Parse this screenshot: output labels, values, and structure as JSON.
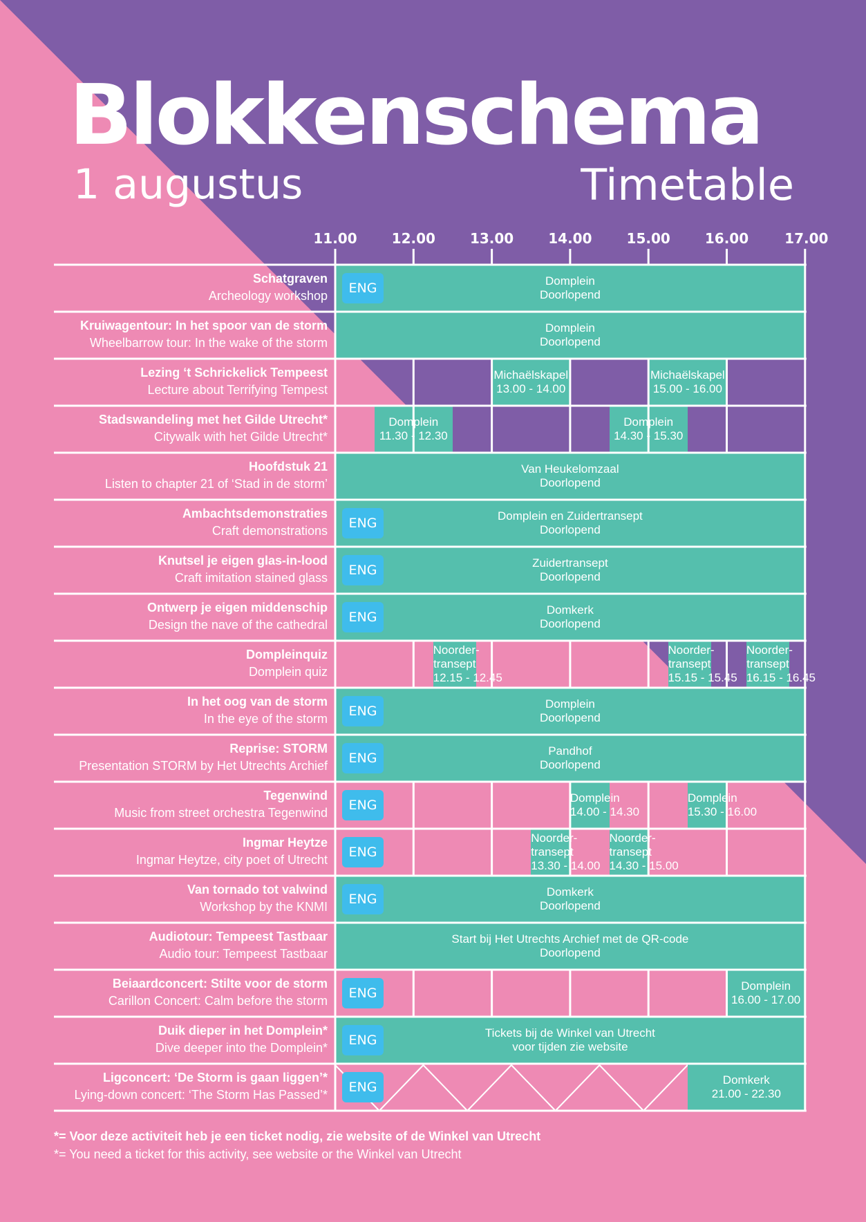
{
  "header": {
    "title": "Blokkenschema",
    "date": "1 augustus",
    "subtitle": "Timetable"
  },
  "colors": {
    "pink": "#ee8ab4",
    "purple": "#7f5da7",
    "teal": "#55bfad",
    "eng": "#3fbcec"
  },
  "times": [
    "11.00",
    "12.00",
    "13.00",
    "14.00",
    "15.00",
    "16.00",
    "17.00"
  ],
  "rows": [
    {
      "name": "Schatgraven",
      "en": "Archeology workshop",
      "eng": true,
      "blocks": [
        {
          "from": 11.0,
          "to": 17.0,
          "lines": [
            "Domplein",
            "Doorlopend"
          ]
        }
      ]
    },
    {
      "name": "Kruiwagentour: In het spoor van de storm",
      "en": "Wheelbarrow tour: In the wake of the storm",
      "eng": false,
      "blocks": [
        {
          "from": 11.0,
          "to": 17.0,
          "lines": [
            "Domplein",
            "Doorlopend"
          ]
        }
      ]
    },
    {
      "name": "Lezing ‘t Schrickelick Tempeest",
      "en": "Lecture about Terrifying Tempest",
      "eng": false,
      "blocks": [
        {
          "from": 13.0,
          "to": 14.0,
          "lines": [
            "Michaëlskapel",
            "13.00 - 14.00"
          ]
        },
        {
          "from": 15.0,
          "to": 16.0,
          "lines": [
            "Michaëlskapel",
            "15.00 - 16.00"
          ]
        }
      ]
    },
    {
      "name": "Stadswandeling met het Gilde Utrecht*",
      "en": "Citywalk with het Gilde Utrecht*",
      "eng": false,
      "blocks": [
        {
          "from": 11.5,
          "to": 12.5,
          "lines": [
            "Domplein",
            "11.30 - 12.30"
          ]
        },
        {
          "from": 14.5,
          "to": 15.5,
          "lines": [
            "Domplein",
            "14.30 - 15.30"
          ]
        }
      ]
    },
    {
      "name": "Hoofdstuk 21",
      "en": "Listen to chapter 21 of ‘Stad in de storm’",
      "eng": false,
      "blocks": [
        {
          "from": 11.0,
          "to": 17.0,
          "lines": [
            "Van Heukelomzaal",
            "Doorlopend"
          ]
        }
      ]
    },
    {
      "name": "Ambachtsdemonstraties",
      "en": "Craft demonstrations",
      "eng": true,
      "blocks": [
        {
          "from": 11.0,
          "to": 17.0,
          "lines": [
            "Domplein en Zuidertransept",
            "Doorlopend"
          ]
        }
      ]
    },
    {
      "name": "Knutsel je eigen glas-in-lood",
      "en": "Craft imitation stained glass",
      "eng": true,
      "blocks": [
        {
          "from": 11.0,
          "to": 17.0,
          "lines": [
            "Zuidertransept",
            "Doorlopend"
          ]
        }
      ]
    },
    {
      "name": "Ontwerp je eigen middenschip",
      "en": "Design the nave of the cathedral",
      "eng": true,
      "blocks": [
        {
          "from": 11.0,
          "to": 17.0,
          "lines": [
            "Domkerk",
            "Doorlopend"
          ]
        }
      ]
    },
    {
      "name": "Dompleinquiz",
      "en": "Domplein quiz",
      "eng": false,
      "blocks": [
        {
          "from": 12.25,
          "to": 12.8,
          "lines": [
            "Noorder-",
            "transept",
            "12.15 - 12.45"
          ]
        },
        {
          "from": 15.25,
          "to": 15.8,
          "lines": [
            "Noorder-",
            "transept",
            "15.15 - 15.45"
          ]
        },
        {
          "from": 16.25,
          "to": 16.8,
          "lines": [
            "Noorder-",
            "transept",
            "16.15 - 16.45"
          ]
        }
      ]
    },
    {
      "name": "In het oog van de storm",
      "en": "In the eye of the storm",
      "eng": true,
      "blocks": [
        {
          "from": 11.0,
          "to": 17.0,
          "lines": [
            "Domplein",
            "Doorlopend"
          ]
        }
      ]
    },
    {
      "name": "Reprise: STORM",
      "en": "Presentation STORM by Het Utrechts Archief",
      "eng": true,
      "blocks": [
        {
          "from": 11.0,
          "to": 17.0,
          "lines": [
            "Pandhof",
            "Doorlopend"
          ]
        }
      ]
    },
    {
      "name": "Tegenwind",
      "en": "Music from street orchestra Tegenwind",
      "eng": true,
      "blocks": [
        {
          "from": 14.0,
          "to": 14.5,
          "lines": [
            "Domplein",
            "14.00 - 14.30"
          ]
        },
        {
          "from": 15.5,
          "to": 16.0,
          "lines": [
            "Domplein",
            "15.30 - 16.00"
          ]
        }
      ]
    },
    {
      "name": "Ingmar Heytze",
      "en": "Ingmar Heytze, city poet of Utrecht",
      "eng": true,
      "blocks": [
        {
          "from": 13.5,
          "to": 14.0,
          "lines": [
            "Noorder-",
            "transept",
            "13.30 - 14.00"
          ]
        },
        {
          "from": 14.5,
          "to": 15.0,
          "lines": [
            "Noorder-",
            "transept",
            "14.30 - 15.00"
          ]
        }
      ]
    },
    {
      "name": "Van tornado tot valwind",
      "en": "Workshop by the KNMI",
      "eng": true,
      "blocks": [
        {
          "from": 11.0,
          "to": 17.0,
          "lines": [
            "Domkerk",
            "Doorlopend"
          ]
        }
      ]
    },
    {
      "name": "Audiotour: Tempeest Tastbaar",
      "en": "Audio tour: Tempeest Tastbaar",
      "eng": false,
      "blocks": [
        {
          "from": 11.0,
          "to": 17.0,
          "lines": [
            "Start bij Het Utrechts Archief met de QR-code",
            "Doorlopend"
          ]
        }
      ]
    },
    {
      "name": "Beiaardconcert: Stilte voor de storm",
      "en": "Carillon Concert: Calm before the storm",
      "eng": true,
      "blocks": [
        {
          "from": 16.0,
          "to": 17.0,
          "lines": [
            "Domplein",
            "16.00 - 17.00"
          ]
        }
      ]
    },
    {
      "name": "Duik dieper in het Domplein*",
      "en": "Dive deeper into the Domplein*",
      "eng": true,
      "blocks": [
        {
          "from": 11.0,
          "to": 17.0,
          "lines": [
            "Tickets bij de Winkel van Utrecht",
            "voor tijden zie website"
          ]
        }
      ]
    },
    {
      "name": "Ligconcert: ‘De Storm is gaan liggen’*",
      "en": "Lying-down concert: ‘The Storm Has Passed’*",
      "eng": true,
      "blocks": [
        {
          "from": 15.5,
          "to": 17.0,
          "lines": [
            "Domkerk",
            "21.00 - 22.30"
          ]
        }
      ]
    }
  ],
  "eng_label": "ENG",
  "footnotes": [
    "*= Voor deze activiteit heb je een ticket nodig, zie website of de Winkel van Utrecht",
    "*= You need a ticket for this activity, see website or the Winkel van Utrecht"
  ]
}
